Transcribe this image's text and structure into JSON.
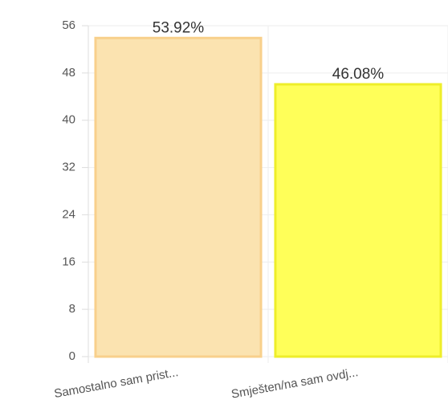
{
  "chart_data": {
    "type": "bar",
    "categories": [
      "Samostalno sam prist...",
      "Smješten/na sam ovdj..."
    ],
    "values": [
      53.92,
      46.08
    ],
    "value_labels": [
      "53.92%",
      "46.08%"
    ],
    "colors": [
      "#fbe3b0",
      "#ffff59"
    ],
    "border_colors": [
      "#f8d08c",
      "#eeee2a"
    ],
    "ylim": [
      0,
      56
    ],
    "yticks": [
      0,
      8,
      16,
      24,
      32,
      40,
      48,
      56
    ],
    "grid": true
  }
}
